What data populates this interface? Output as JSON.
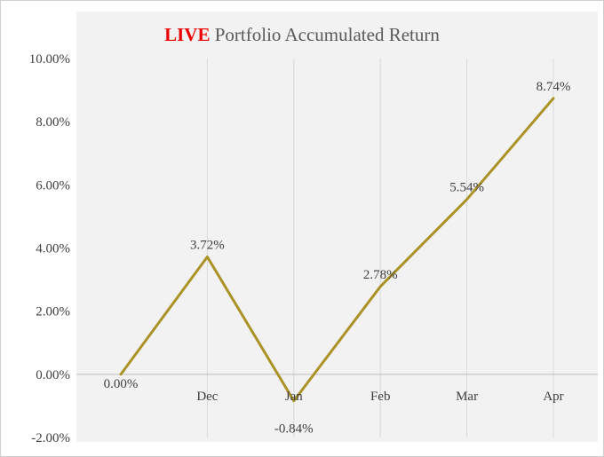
{
  "title": {
    "live": "LIVE",
    "rest": " Portfolio Accumulated Return",
    "live_color": "#ee0000",
    "rest_color": "#595959"
  },
  "chart_data": {
    "type": "line",
    "title": "LIVE Portfolio Accumulated Return",
    "categories": [
      "",
      "Dec",
      "Jan",
      "Feb",
      "Mar",
      "Apr"
    ],
    "values": [
      0.0,
      3.72,
      -0.84,
      2.78,
      5.54,
      8.74
    ],
    "data_labels": [
      "0.00%",
      "3.72%",
      "-0.84%",
      "2.78%",
      "5.54%",
      "8.74%"
    ],
    "label_dy": [
      15,
      -9,
      36,
      -9,
      -9,
      -9
    ],
    "y_ticks": [
      "10.00%",
      "8.00%",
      "6.00%",
      "4.00%",
      "2.00%",
      "0.00%",
      "-2.00%"
    ],
    "y_tick_values": [
      10,
      8,
      6,
      4,
      2,
      0,
      -2
    ],
    "ylim": [
      -2,
      10
    ],
    "xlabel": "",
    "ylabel": "",
    "legend": "none",
    "grid": "vertical-category-lines",
    "line_color": "#ab9226",
    "axis_line_color": "#bfbfbf",
    "gridline_color": "#d9d9d9",
    "plot_bg_color": "#f2f2f2"
  }
}
